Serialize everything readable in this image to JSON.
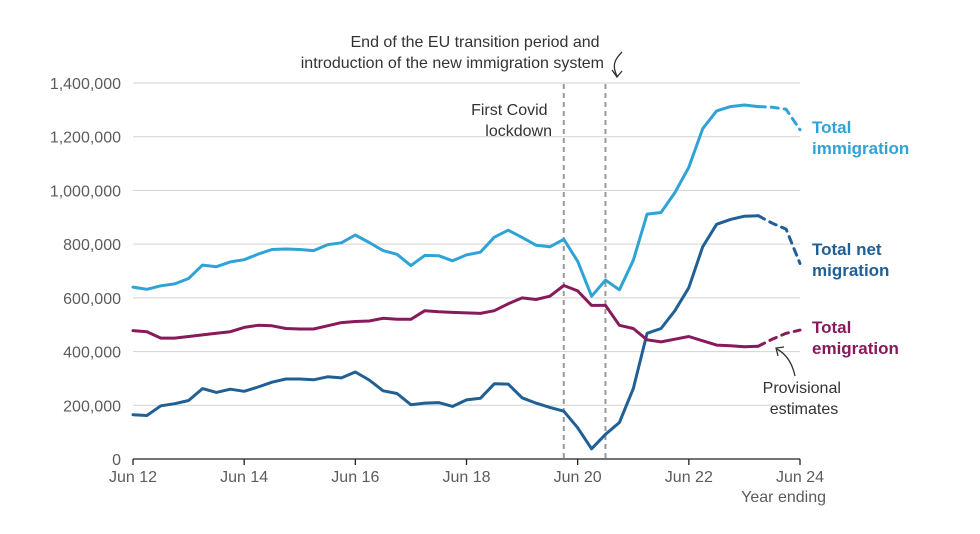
{
  "chart_data": {
    "type": "line",
    "x_labels": [
      "Jun 12",
      "Jun 14",
      "Jun 16",
      "Jun 18",
      "Jun 20",
      "Jun 22",
      "Jun 24"
    ],
    "x_range": [
      2012.5,
      2024.5
    ],
    "xlabel": "Year ending",
    "y_ticks": [
      0,
      200000,
      400000,
      600000,
      800000,
      1000000,
      1200000,
      1400000
    ],
    "y_tick_labels": [
      "0",
      "200,000",
      "400,000",
      "600,000",
      "800,000",
      "1,000,000",
      "1,200,000",
      "1,400,000"
    ],
    "ylim": [
      0,
      1400000
    ],
    "grid": true,
    "annotations": {
      "covid": {
        "x": 2020.25,
        "lines": [
          "First Covid",
          "lockdown"
        ]
      },
      "eu": {
        "x": 2021.0,
        "lines": [
          "End of the EU transition period and",
          "introduction of the new immigration system"
        ]
      },
      "provisional": {
        "lines": [
          "Provisional",
          "estimates"
        ]
      }
    },
    "series": [
      {
        "id": "immigration",
        "name_lines": [
          "Total",
          "immigration"
        ],
        "color": "#2fa3d5",
        "x": [
          2012.5,
          2012.75,
          2013.0,
          2013.25,
          2013.5,
          2013.75,
          2014.0,
          2014.25,
          2014.5,
          2014.75,
          2015.0,
          2015.25,
          2015.5,
          2015.75,
          2016.0,
          2016.25,
          2016.5,
          2016.75,
          2017.0,
          2017.25,
          2017.5,
          2017.75,
          2018.0,
          2018.25,
          2018.5,
          2018.75,
          2019.0,
          2019.25,
          2019.5,
          2019.75,
          2020.0,
          2020.25,
          2020.5,
          2020.75,
          2021.0,
          2021.25,
          2021.5,
          2021.75,
          2022.0,
          2022.25,
          2022.5,
          2022.75,
          2023.0,
          2023.25,
          2023.5,
          2023.75
        ],
        "values": [
          640000,
          632000,
          645000,
          652000,
          672000,
          722000,
          716000,
          734000,
          742000,
          763000,
          780000,
          782000,
          780000,
          776000,
          798000,
          805000,
          834000,
          806000,
          776000,
          762000,
          720000,
          758000,
          757000,
          738000,
          760000,
          770000,
          826000,
          852000,
          825000,
          796000,
          790000,
          818000,
          736000,
          606000,
          666000,
          630000,
          740000,
          912000,
          918000,
          992000,
          1086000,
          1230000,
          1296000,
          1312000,
          1318000,
          1312000
        ],
        "provisional_x": [
          2023.75,
          2024.0,
          2024.25,
          2024.5
        ],
        "provisional_values": [
          1312000,
          1310000,
          1302000,
          1226000
        ]
      },
      {
        "id": "net",
        "name_lines": [
          "Total net",
          "migration"
        ],
        "color": "#206095",
        "x": [
          2012.5,
          2012.75,
          2013.0,
          2013.25,
          2013.5,
          2013.75,
          2014.0,
          2014.25,
          2014.5,
          2014.75,
          2015.0,
          2015.25,
          2015.5,
          2015.75,
          2016.0,
          2016.25,
          2016.5,
          2016.75,
          2017.0,
          2017.25,
          2017.5,
          2017.75,
          2018.0,
          2018.25,
          2018.5,
          2018.75,
          2019.0,
          2019.25,
          2019.5,
          2019.75,
          2020.0,
          2020.25,
          2020.5,
          2020.75,
          2021.0,
          2021.25,
          2021.5,
          2021.75,
          2022.0,
          2022.25,
          2022.5,
          2022.75,
          2023.0,
          2023.25,
          2023.5,
          2023.75
        ],
        "values": [
          165000,
          162000,
          198000,
          206000,
          218000,
          262000,
          248000,
          260000,
          252000,
          268000,
          286000,
          298000,
          298000,
          295000,
          306000,
          302000,
          324000,
          294000,
          254000,
          244000,
          202000,
          208000,
          210000,
          196000,
          220000,
          226000,
          280000,
          279000,
          228000,
          208000,
          192000,
          178000,
          116000,
          38000,
          92000,
          136000,
          262000,
          468000,
          486000,
          552000,
          638000,
          790000,
          874000,
          892000,
          904000,
          906000
        ],
        "provisional_x": [
          2023.75,
          2024.0,
          2024.25,
          2024.5
        ],
        "provisional_values": [
          906000,
          878000,
          856000,
          728000
        ]
      },
      {
        "id": "emigration",
        "name_lines": [
          "Total",
          "emigration"
        ],
        "color": "#871a5b",
        "x": [
          2012.5,
          2012.75,
          2013.0,
          2013.25,
          2013.5,
          2013.75,
          2014.0,
          2014.25,
          2014.5,
          2014.75,
          2015.0,
          2015.25,
          2015.5,
          2015.75,
          2016.0,
          2016.25,
          2016.5,
          2016.75,
          2017.0,
          2017.25,
          2017.5,
          2017.75,
          2018.0,
          2018.25,
          2018.5,
          2018.75,
          2019.0,
          2019.25,
          2019.5,
          2019.75,
          2020.0,
          2020.25,
          2020.5,
          2020.75,
          2021.0,
          2021.25,
          2021.5,
          2021.75,
          2022.0,
          2022.25,
          2022.5,
          2022.75,
          2023.0,
          2023.25,
          2023.5,
          2023.75
        ],
        "values": [
          478000,
          474000,
          450000,
          450000,
          456000,
          462000,
          468000,
          474000,
          490000,
          498000,
          496000,
          486000,
          484000,
          484000,
          496000,
          508000,
          512000,
          514000,
          524000,
          520000,
          520000,
          552000,
          548000,
          546000,
          544000,
          542000,
          552000,
          578000,
          600000,
          594000,
          606000,
          646000,
          626000,
          572000,
          572000,
          498000,
          486000,
          444000,
          436000,
          446000,
          456000,
          440000,
          424000,
          422000,
          418000,
          420000
        ],
        "provisional_x": [
          2023.75,
          2024.0,
          2024.25,
          2024.5
        ],
        "provisional_values": [
          420000,
          446000,
          468000,
          480000
        ]
      }
    ]
  }
}
